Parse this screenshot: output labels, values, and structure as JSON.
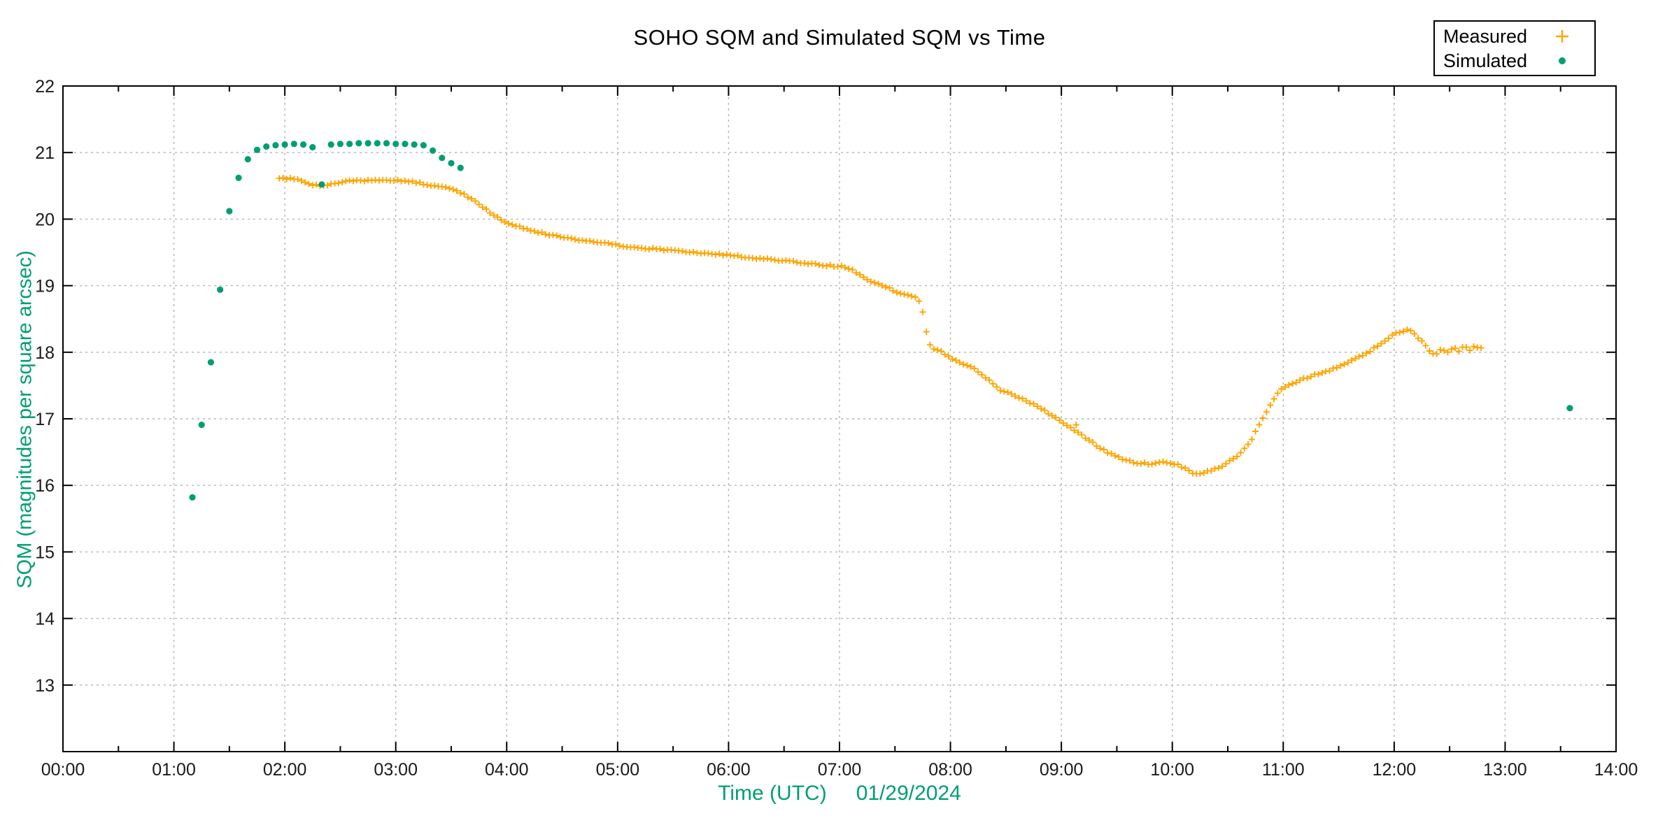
{
  "chart_data": {
    "type": "scatter",
    "title": "SOHO SQM and Simulated SQM vs Time",
    "xlabel": "Time (UTC)",
    "xlabel_date": "01/29/2024",
    "ylabel": "SQM (magnitudes per square arcsec)",
    "axis_label_color": "#009e73",
    "x_range_minutes": [
      0,
      840
    ],
    "x_major_tick_min": 60,
    "x_minor_tick_min": 30,
    "x_tick_labels": [
      "00:00",
      "01:00",
      "02:00",
      "03:00",
      "04:00",
      "05:00",
      "06:00",
      "07:00",
      "08:00",
      "09:00",
      "10:00",
      "11:00",
      "12:00",
      "13:00",
      "14:00"
    ],
    "ylim": [
      12,
      22
    ],
    "y_tick_values": [
      13,
      14,
      15,
      16,
      17,
      18,
      19,
      20,
      21,
      22
    ],
    "grid": {
      "style": "dashed",
      "color": "#b3b3b3",
      "x_at_every_hour": true,
      "y_at_every_unit": true
    },
    "legend": {
      "position": "top-right",
      "entries": [
        {
          "label": "Measured",
          "marker": "plus",
          "color": "#ffa500"
        },
        {
          "label": "Simulated",
          "marker": "dot",
          "color": "#009e73"
        }
      ]
    },
    "series": [
      {
        "name": "Measured",
        "marker": "plus",
        "color": "#ffa500",
        "sampling_note": "dense + markers at ~2-min cadence from 01:57 to 12:48 UTC; control polyline below (minutes, SQM)",
        "cadence_min": 2,
        "jitter_mag": 0.013,
        "points_control": [
          [
            117,
            20.62
          ],
          [
            122,
            20.61
          ],
          [
            127,
            20.59
          ],
          [
            132,
            20.55
          ],
          [
            136,
            20.51
          ],
          [
            140,
            20.5
          ],
          [
            144,
            20.52
          ],
          [
            148,
            20.55
          ],
          [
            152,
            20.57
          ],
          [
            158,
            20.58
          ],
          [
            165,
            20.58
          ],
          [
            172,
            20.58
          ],
          [
            180,
            20.58
          ],
          [
            186,
            20.57
          ],
          [
            192,
            20.55
          ],
          [
            197,
            20.52
          ],
          [
            202,
            20.5
          ],
          [
            207,
            20.47
          ],
          [
            212,
            20.43
          ],
          [
            217,
            20.37
          ],
          [
            222,
            20.28
          ],
          [
            227,
            20.18
          ],
          [
            233,
            20.06
          ],
          [
            240,
            19.95
          ],
          [
            248,
            19.87
          ],
          [
            256,
            19.81
          ],
          [
            264,
            19.76
          ],
          [
            272,
            19.72
          ],
          [
            282,
            19.67
          ],
          [
            292,
            19.64
          ],
          [
            300,
            19.61
          ],
          [
            312,
            19.57
          ],
          [
            324,
            19.54
          ],
          [
            336,
            19.51
          ],
          [
            348,
            19.48
          ],
          [
            360,
            19.46
          ],
          [
            372,
            19.42
          ],
          [
            384,
            19.39
          ],
          [
            396,
            19.36
          ],
          [
            408,
            19.32
          ],
          [
            416,
            19.3
          ],
          [
            422,
            19.29
          ],
          [
            426,
            19.25
          ],
          [
            430,
            19.18
          ],
          [
            434,
            19.11
          ],
          [
            438,
            19.05
          ],
          [
            442,
            19.01
          ],
          [
            446,
            18.97
          ],
          [
            450,
            18.92
          ],
          [
            454,
            18.87
          ],
          [
            458,
            18.84
          ],
          [
            461,
            18.82
          ],
          [
            463,
            18.76
          ],
          [
            465,
            18.6
          ],
          [
            466,
            18.45
          ],
          [
            467,
            18.3
          ],
          [
            468,
            18.17
          ],
          [
            469,
            18.1
          ],
          [
            471,
            18.06
          ],
          [
            473,
            18.04
          ],
          [
            476,
            17.99
          ],
          [
            479,
            17.93
          ],
          [
            482,
            17.88
          ],
          [
            485,
            17.84
          ],
          [
            489,
            17.81
          ],
          [
            493,
            17.76
          ],
          [
            497,
            17.66
          ],
          [
            502,
            17.56
          ],
          [
            506,
            17.45
          ],
          [
            511,
            17.39
          ],
          [
            516,
            17.34
          ],
          [
            521,
            17.27
          ],
          [
            526,
            17.21
          ],
          [
            530,
            17.15
          ],
          [
            534,
            17.06
          ],
          [
            538,
            16.99
          ],
          [
            541,
            16.93
          ],
          [
            545,
            16.86
          ],
          [
            549,
            16.79
          ],
          [
            554,
            16.7
          ],
          [
            559,
            16.6
          ],
          [
            564,
            16.51
          ],
          [
            569,
            16.44
          ],
          [
            574,
            16.39
          ],
          [
            579,
            16.35
          ],
          [
            584,
            16.33
          ],
          [
            590,
            16.32
          ],
          [
            594,
            16.35
          ],
          [
            598,
            16.34
          ],
          [
            602,
            16.32
          ],
          [
            606,
            16.27
          ],
          [
            609,
            16.21
          ],
          [
            612,
            16.18
          ],
          [
            615,
            16.18
          ],
          [
            618,
            16.2
          ],
          [
            622,
            16.24
          ],
          [
            626,
            16.28
          ],
          [
            630,
            16.34
          ],
          [
            634,
            16.42
          ],
          [
            638,
            16.52
          ],
          [
            642,
            16.65
          ],
          [
            645,
            16.8
          ],
          [
            648,
            16.95
          ],
          [
            651,
            17.1
          ],
          [
            654,
            17.25
          ],
          [
            657,
            17.38
          ],
          [
            660,
            17.46
          ],
          [
            665,
            17.53
          ],
          [
            670,
            17.59
          ],
          [
            676,
            17.65
          ],
          [
            682,
            17.7
          ],
          [
            688,
            17.76
          ],
          [
            694,
            17.83
          ],
          [
            700,
            17.91
          ],
          [
            706,
            18.0
          ],
          [
            711,
            18.1
          ],
          [
            716,
            18.2
          ],
          [
            720,
            18.27
          ],
          [
            724,
            18.32
          ],
          [
            727,
            18.33
          ],
          [
            730,
            18.3
          ],
          [
            733,
            18.22
          ],
          [
            736,
            18.14
          ],
          [
            738,
            18.05
          ],
          [
            740,
            17.99
          ],
          [
            743,
            17.98
          ],
          [
            746,
            18.05
          ],
          [
            749,
            18.0
          ],
          [
            752,
            18.08
          ],
          [
            755,
            18.02
          ],
          [
            758,
            18.1
          ],
          [
            761,
            18.04
          ],
          [
            764,
            18.11
          ],
          [
            766,
            18.05
          ],
          [
            768,
            18.08
          ]
        ],
        "outliers": [
          [
            548,
            16.91
          ]
        ]
      },
      {
        "name": "Simulated",
        "marker": "dot",
        "color": "#009e73",
        "sampling_note": "dots every 5 min 01:10-03:35 UTC plus one isolated dot at 13:35 (minutes, SQM)",
        "points": [
          [
            70,
            15.82
          ],
          [
            75,
            16.91
          ],
          [
            80,
            17.85
          ],
          [
            85,
            18.94
          ],
          [
            90,
            20.12
          ],
          [
            95,
            20.62
          ],
          [
            100,
            20.9
          ],
          [
            105,
            21.04
          ],
          [
            110,
            21.09
          ],
          [
            115,
            21.11
          ],
          [
            120,
            21.12
          ],
          [
            125,
            21.13
          ],
          [
            130,
            21.12
          ],
          [
            135,
            21.08
          ],
          [
            140,
            20.52
          ],
          [
            145,
            21.12
          ],
          [
            150,
            21.13
          ],
          [
            155,
            21.13
          ],
          [
            160,
            21.14
          ],
          [
            165,
            21.14
          ],
          [
            170,
            21.14
          ],
          [
            175,
            21.14
          ],
          [
            180,
            21.13
          ],
          [
            185,
            21.13
          ],
          [
            190,
            21.12
          ],
          [
            195,
            21.11
          ],
          [
            200,
            21.03
          ],
          [
            205,
            20.92
          ],
          [
            210,
            20.84
          ],
          [
            215,
            20.77
          ],
          [
            815,
            17.16
          ]
        ]
      }
    ]
  }
}
